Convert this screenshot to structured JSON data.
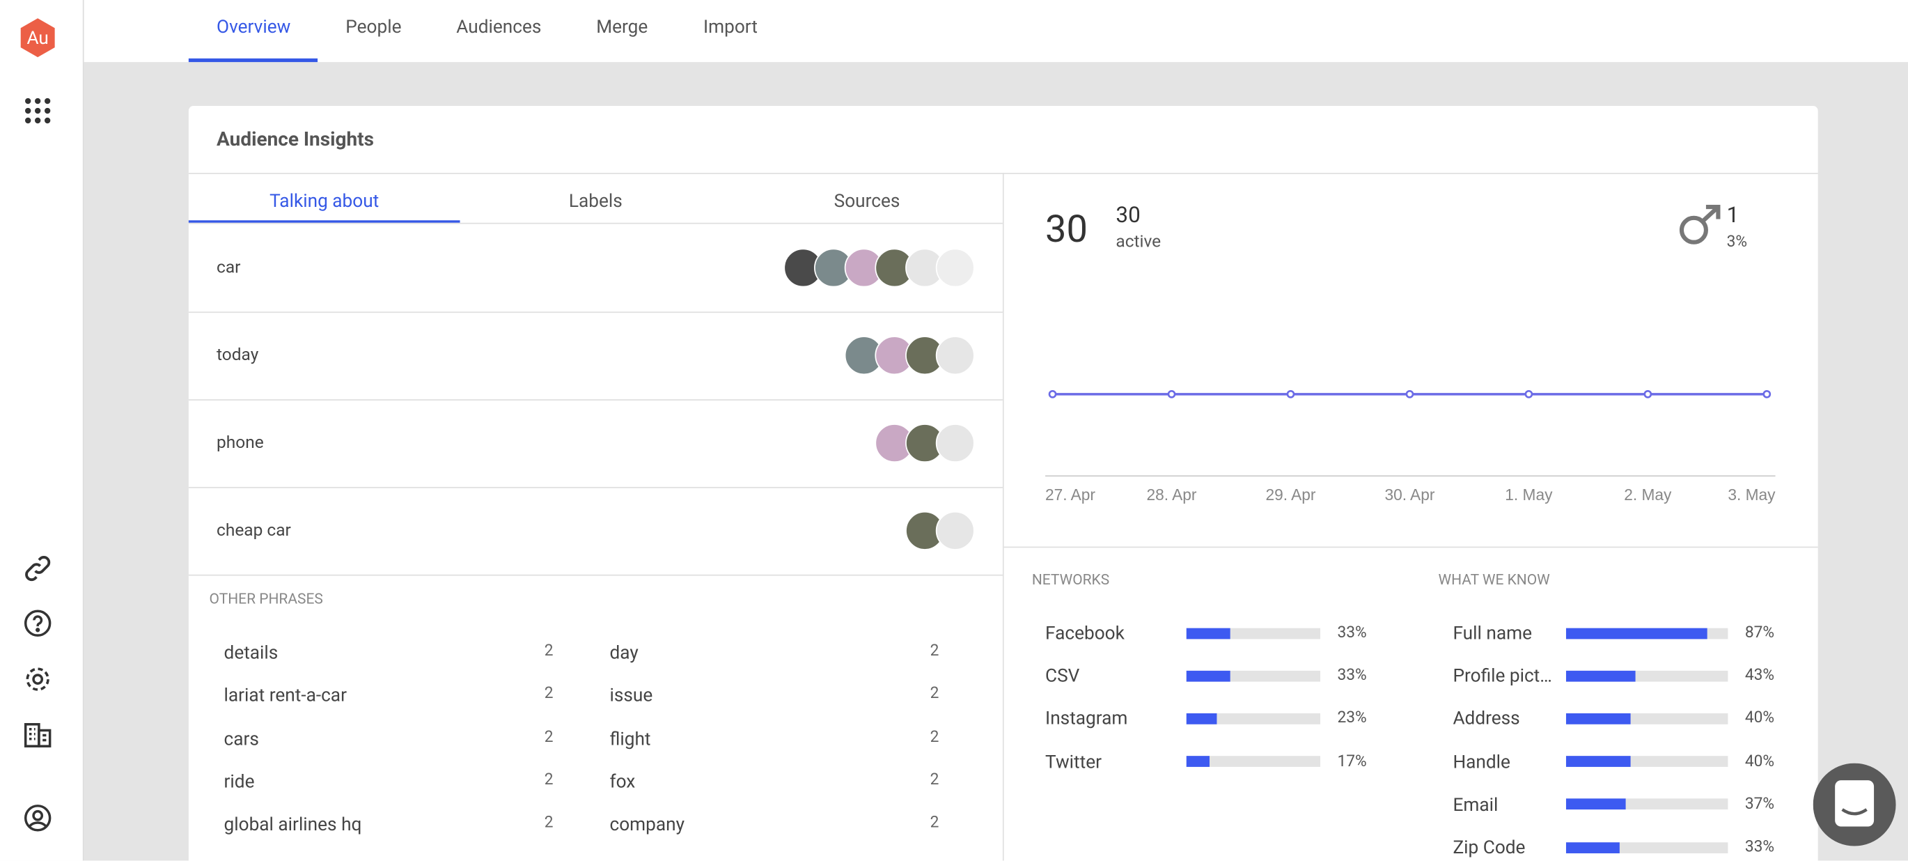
{
  "app": {
    "logo": "Au"
  },
  "nav": {
    "tabs": [
      "Overview",
      "People",
      "Audiences",
      "Merge",
      "Import"
    ],
    "active": 0
  },
  "card": {
    "title": "Audience Insights",
    "tabs": [
      "Talking about",
      "Labels",
      "Sources"
    ],
    "active_tab": 0,
    "topics": [
      "car",
      "today",
      "phone",
      "cheap car"
    ],
    "other_phrases": {
      "title": "OTHER PHRASES",
      "items": [
        {
          "phrase": "details",
          "count": 2
        },
        {
          "phrase": "lariat rent-a-car",
          "count": 2
        },
        {
          "phrase": "cars",
          "count": 2
        },
        {
          "phrase": "ride",
          "count": 2
        },
        {
          "phrase": "global airlines hq",
          "count": 2
        },
        {
          "phrase": "day",
          "count": 2
        },
        {
          "phrase": "issue",
          "count": 2
        },
        {
          "phrase": "flight",
          "count": 2
        },
        {
          "phrase": "fox",
          "count": 2
        },
        {
          "phrase": "company",
          "count": 2
        }
      ]
    }
  },
  "summary": {
    "total": 30,
    "active": 30,
    "active_label": "active",
    "male": 1,
    "male_share": "3%"
  },
  "chart_data": [
    {
      "type": "line",
      "categories": [
        "27. Apr",
        "28. Apr",
        "29. Apr",
        "30. Apr",
        "1. May",
        "2. May",
        "3. May"
      ],
      "values": [
        30,
        30,
        30,
        30,
        30,
        30,
        30
      ],
      "color": "#6b6be6",
      "ylim": [
        0,
        75
      ]
    },
    {
      "type": "hbar",
      "title": "NETWORKS",
      "categories": [
        "Facebook",
        "CSV",
        "Instagram",
        "Twitter"
      ],
      "values": [
        33,
        33,
        23,
        17
      ],
      "value_labels": [
        "33%",
        "33%",
        "23%",
        "17%"
      ],
      "xlim": [
        0,
        100
      ],
      "color": "#3d5af1"
    },
    {
      "type": "hbar",
      "title": "WHAT WE KNOW",
      "categories": [
        "Full name",
        "Profile pict…",
        "Address",
        "Handle",
        "Email",
        "Zip Code"
      ],
      "values": [
        87,
        43,
        40,
        40,
        37,
        33
      ],
      "value_labels": [
        "87%",
        "43%",
        "40%",
        "40%",
        "37%",
        "33%"
      ],
      "xlim": [
        0,
        100
      ],
      "color": "#3d5af1"
    }
  ]
}
